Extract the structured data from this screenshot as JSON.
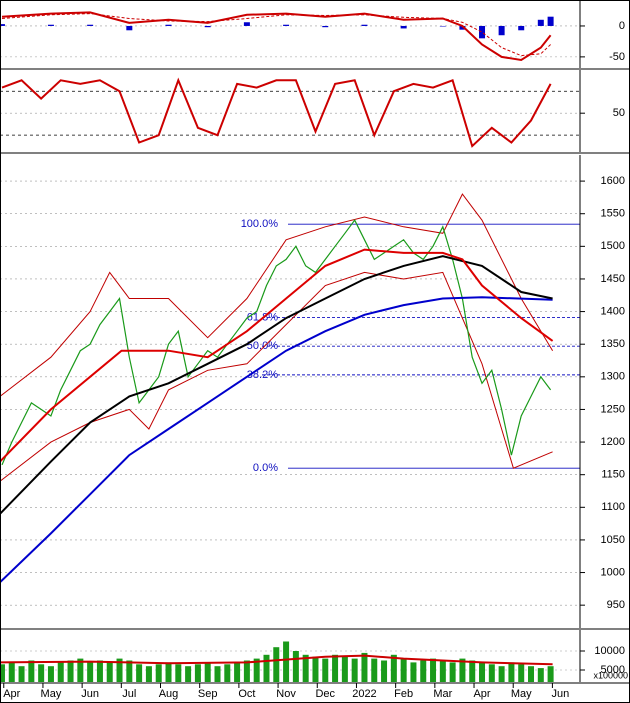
{
  "chart_data": [
    {
      "type": "macd",
      "ylim": [
        -68,
        42
      ],
      "yticks": [
        0,
        -50
      ],
      "series": [
        {
          "style": "bar",
          "color": "#0000cc",
          "x": [
            -0.25,
            1,
            2,
            3,
            4,
            5,
            6,
            7,
            8,
            9,
            10,
            11,
            11.5,
            12,
            12.5,
            13,
            13.5,
            13.75
          ],
          "values": [
            3,
            2,
            2,
            -7,
            2,
            -2,
            6,
            2,
            -2,
            2,
            -4,
            0,
            -6,
            -20,
            -15,
            -7,
            10,
            15
          ]
        },
        {
          "style": "dashed",
          "color": "#cc0000",
          "x": [
            -0.25,
            1,
            2,
            3,
            4,
            5,
            6,
            7,
            8,
            9,
            10,
            11,
            11.5,
            12,
            12.5,
            13,
            13.5,
            13.75
          ],
          "values": [
            12,
            18,
            20,
            12,
            8,
            7,
            12,
            18,
            17,
            18,
            14,
            12,
            6,
            -10,
            -35,
            -48,
            -45,
            -30
          ]
        },
        {
          "style": "line",
          "color": "#cc0000",
          "x": [
            -0.25,
            1,
            2,
            3,
            4,
            5,
            6,
            7,
            8,
            9,
            10,
            11,
            11.5,
            12,
            12.5,
            13,
            13.5,
            13.75
          ],
          "values": [
            15,
            20,
            22,
            5,
            10,
            5,
            18,
            20,
            15,
            20,
            10,
            12,
            0,
            -30,
            -50,
            -55,
            -35,
            -15
          ]
        }
      ]
    },
    {
      "type": "oscillator",
      "ylim": [
        -3,
        109
      ],
      "yticks": [
        50
      ],
      "hlines": [
        20,
        80
      ],
      "series": [
        {
          "style": "line",
          "color": "#cc0000",
          "x": [
            -0.25,
            0.25,
            0.75,
            1.25,
            1.75,
            2.25,
            2.75,
            3.25,
            3.75,
            4.25,
            4.75,
            5.25,
            5.75,
            6.25,
            6.75,
            7.25,
            7.75,
            8.25,
            8.75,
            9.25,
            9.75,
            10.25,
            10.75,
            11.25,
            11.75,
            12.25,
            12.75,
            13.25,
            13.75
          ],
          "values": [
            85,
            95,
            70,
            95,
            90,
            95,
            80,
            10,
            20,
            95,
            30,
            20,
            90,
            85,
            95,
            95,
            25,
            90,
            95,
            20,
            80,
            90,
            85,
            95,
            5,
            30,
            10,
            40,
            90
          ]
        }
      ]
    },
    {
      "type": "price",
      "ylim": [
        915,
        1640
      ],
      "yticks": [
        1600,
        1550,
        1500,
        1450,
        1400,
        1350,
        1300,
        1250,
        1200,
        1150,
        1100,
        1050,
        1000,
        950
      ],
      "levels": [
        {
          "value": 1534,
          "label": "100.0%"
        },
        {
          "value": 1391,
          "label": "61.8%"
        },
        {
          "value": 1347,
          "label": "50.0%"
        },
        {
          "value": 1303,
          "label": "38.2%"
        },
        {
          "value": 1160,
          "label": "0.0%"
        }
      ],
      "series": [
        {
          "style": "thin",
          "color": "#c00000",
          "x": [
            -0.3,
            1,
            2,
            2.5,
            3,
            4,
            5,
            6,
            7,
            8,
            9,
            10,
            11,
            11.5,
            12,
            13,
            13.8
          ],
          "values": [
            1270,
            1330,
            1400,
            1460,
            1420,
            1420,
            1360,
            1420,
            1510,
            1530,
            1545,
            1530,
            1520,
            1580,
            1540,
            1420,
            1340
          ]
        },
        {
          "style": "thin",
          "color": "#c00000",
          "x": [
            -0.3,
            1,
            2,
            3,
            3.5,
            4,
            5,
            6,
            7,
            8,
            9,
            10,
            11,
            12,
            12.8,
            13.8
          ],
          "values": [
            1140,
            1200,
            1230,
            1250,
            1220,
            1280,
            1310,
            1320,
            1380,
            1440,
            1460,
            1450,
            1460,
            1320,
            1160,
            1185
          ]
        },
        {
          "style": "close",
          "color": "#1a9a1a",
          "x": [
            -0.25,
            0,
            0.25,
            0.5,
            0.75,
            1,
            1.25,
            1.5,
            1.75,
            2,
            2.25,
            2.5,
            2.75,
            3,
            3.25,
            3.5,
            3.75,
            4,
            4.25,
            4.5,
            4.75,
            5,
            5.25,
            5.5,
            5.75,
            6,
            6.25,
            6.5,
            6.75,
            7,
            7.25,
            7.5,
            7.75,
            8,
            8.25,
            8.5,
            8.75,
            9,
            9.25,
            9.5,
            9.75,
            10,
            10.25,
            10.5,
            10.75,
            11,
            11.25,
            11.5,
            11.75,
            12,
            12.25,
            12.5,
            12.75,
            13,
            13.25,
            13.5,
            13.75
          ],
          "values": [
            1165,
            1200,
            1230,
            1260,
            1250,
            1240,
            1280,
            1310,
            1340,
            1350,
            1380,
            1400,
            1420,
            1330,
            1260,
            1280,
            1300,
            1350,
            1370,
            1300,
            1320,
            1340,
            1330,
            1350,
            1370,
            1390,
            1400,
            1440,
            1470,
            1480,
            1500,
            1470,
            1460,
            1480,
            1500,
            1520,
            1540,
            1510,
            1480,
            1490,
            1500,
            1510,
            1490,
            1480,
            1500,
            1530,
            1480,
            1420,
            1330,
            1290,
            1310,
            1250,
            1180,
            1240,
            1270,
            1300,
            1280
          ]
        },
        {
          "style": "thick",
          "color": "#0000cc",
          "x": [
            -0.3,
            1,
            2,
            3,
            4,
            5,
            6,
            7,
            8,
            9,
            10,
            11,
            12,
            13.8
          ],
          "values": [
            985,
            1060,
            1120,
            1180,
            1220,
            1260,
            1300,
            1340,
            1370,
            1395,
            1410,
            1420,
            1422,
            1418
          ]
        },
        {
          "style": "thick",
          "color": "#000000",
          "x": [
            -0.3,
            1,
            2,
            3,
            4,
            5,
            6,
            7,
            8,
            9,
            10,
            11,
            12,
            13,
            13.8
          ],
          "values": [
            1090,
            1170,
            1230,
            1270,
            1290,
            1320,
            1350,
            1390,
            1420,
            1450,
            1470,
            1485,
            1470,
            1430,
            1420
          ]
        },
        {
          "style": "thick",
          "color": "#dd0000",
          "x": [
            -0.3,
            1,
            2,
            2.8,
            4,
            5,
            6,
            7,
            8,
            9,
            10,
            11,
            11.5,
            12,
            13,
            13.8
          ],
          "values": [
            1170,
            1250,
            1300,
            1340,
            1340,
            1330,
            1370,
            1420,
            1470,
            1495,
            1490,
            1490,
            1480,
            1440,
            1390,
            1355
          ]
        }
      ]
    },
    {
      "type": "volume",
      "ylim": [
        1842,
        15526
      ],
      "yticks": [
        10000,
        5000
      ],
      "unit_label": "x100000",
      "xlim": [
        -0.3,
        14.5
      ],
      "xticks": [
        {
          "value": 0,
          "label": "Apr"
        },
        {
          "value": 1,
          "label": "May"
        },
        {
          "value": 2,
          "label": "Jun"
        },
        {
          "value": 3,
          "label": "Jul"
        },
        {
          "value": 4,
          "label": "Aug"
        },
        {
          "value": 5,
          "label": "Sep"
        },
        {
          "value": 6,
          "label": "Oct"
        },
        {
          "value": 7,
          "label": "Nov"
        },
        {
          "value": 8,
          "label": "Dec"
        },
        {
          "value": 9,
          "label": "2022"
        },
        {
          "value": 10,
          "label": "Feb"
        },
        {
          "value": 11,
          "label": "Mar"
        },
        {
          "value": 12,
          "label": "Apr"
        },
        {
          "value": 13,
          "label": "May"
        },
        {
          "value": 14,
          "label": "Jun"
        }
      ],
      "series": [
        {
          "style": "bar",
          "color": "#1a9a1a",
          "x": [
            -0.25,
            0,
            0.25,
            0.5,
            0.75,
            1,
            1.25,
            1.5,
            1.75,
            2,
            2.25,
            2.5,
            2.75,
            3,
            3.25,
            3.5,
            3.75,
            4,
            4.25,
            4.5,
            4.75,
            5,
            5.25,
            5.5,
            5.75,
            6,
            6.25,
            6.5,
            6.75,
            7,
            7.25,
            7.5,
            7.75,
            8,
            8.25,
            8.5,
            8.75,
            9,
            9.25,
            9.5,
            9.75,
            10,
            10.25,
            10.5,
            10.75,
            11,
            11.25,
            11.5,
            11.75,
            12,
            12.25,
            12.5,
            12.75,
            13,
            13.25,
            13.5,
            13.75
          ],
          "values": [
            6500,
            7000,
            6000,
            7500,
            6500,
            6000,
            7000,
            7500,
            8000,
            7000,
            7500,
            7000,
            8000,
            7500,
            6500,
            6000,
            6500,
            7000,
            6500,
            6000,
            6500,
            7000,
            6000,
            6500,
            7000,
            7500,
            8000,
            9000,
            11000,
            12500,
            10000,
            9000,
            8500,
            8000,
            9000,
            8500,
            8000,
            9500,
            8000,
            7500,
            9000,
            8000,
            7000,
            7500,
            8000,
            7500,
            7000,
            8000,
            7500,
            7000,
            6500,
            6000,
            7000,
            6500,
            6000,
            5500,
            6000
          ]
        },
        {
          "style": "thick",
          "color": "#cc0000",
          "x": [
            -0.3,
            2,
            4,
            6,
            8,
            9,
            10,
            12,
            13.8
          ],
          "values": [
            7000,
            7200,
            6800,
            7000,
            8500,
            8800,
            8000,
            7000,
            6500
          ]
        }
      ]
    }
  ]
}
